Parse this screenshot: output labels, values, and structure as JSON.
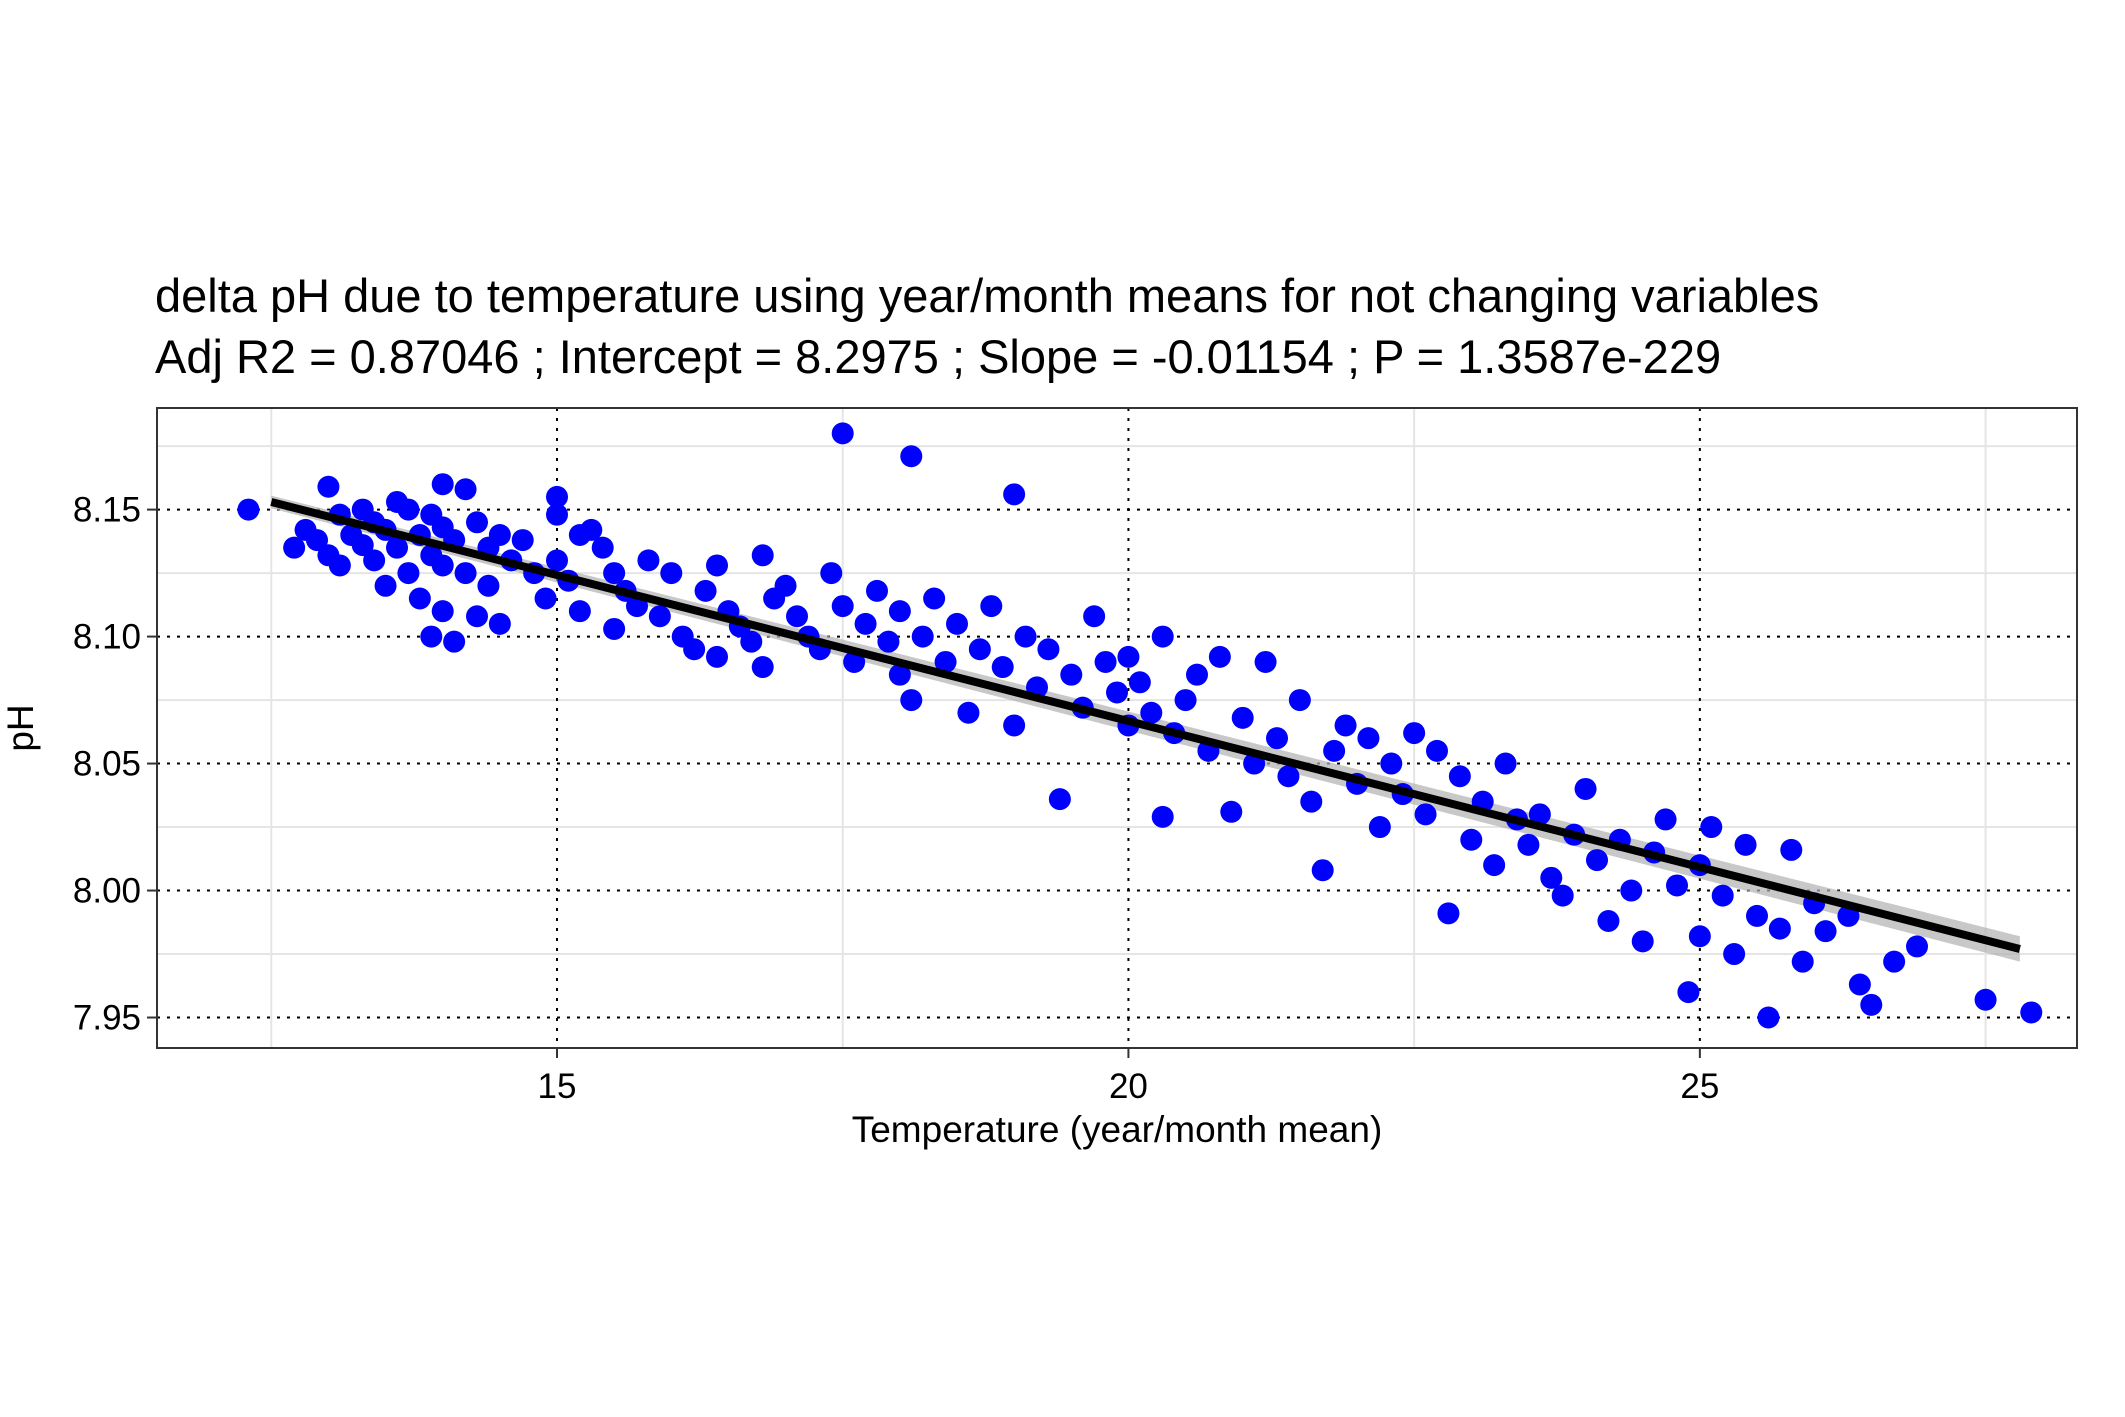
{
  "chart_data": {
    "type": "scatter",
    "title": "delta pH due to temperature using year/month means for not changing variables",
    "subtitle": "Adj R2 =  0.87046 ; Intercept = 8.2975 ; Slope = -0.01154 ; P = 1.3587e-229",
    "xlabel": "Temperature (year/month mean)",
    "ylabel": "pH",
    "xlim": [
      11.5,
      28.3
    ],
    "ylim": [
      7.938,
      8.19
    ],
    "x_ticks": [
      15,
      20,
      25
    ],
    "x_tick_labels": [
      "15",
      "20",
      "25"
    ],
    "y_ticks": [
      7.95,
      8.0,
      8.05,
      8.1,
      8.15
    ],
    "y_tick_labels": [
      "7.95",
      "8.00",
      "8.05",
      "8.10",
      "8.15"
    ],
    "grid": true,
    "legend": "none",
    "point_color": "#0000ff",
    "fit_line": {
      "x_start": 12.5,
      "x_end": 27.8,
      "y_start": 8.153,
      "y_end": 7.977,
      "color": "#000000",
      "ci_color": "#b0b0b0"
    },
    "points": [
      [
        12.3,
        8.15
      ],
      [
        12.7,
        8.135
      ],
      [
        12.8,
        8.142
      ],
      [
        12.9,
        8.138
      ],
      [
        13.0,
        8.159
      ],
      [
        13.0,
        8.132
      ],
      [
        13.1,
        8.148
      ],
      [
        13.1,
        8.128
      ],
      [
        13.2,
        8.14
      ],
      [
        13.3,
        8.15
      ],
      [
        13.3,
        8.136
      ],
      [
        13.4,
        8.145
      ],
      [
        13.4,
        8.13
      ],
      [
        13.5,
        8.12
      ],
      [
        13.5,
        8.142
      ],
      [
        13.6,
        8.153
      ],
      [
        13.6,
        8.135
      ],
      [
        13.7,
        8.15
      ],
      [
        13.7,
        8.125
      ],
      [
        13.8,
        8.14
      ],
      [
        13.8,
        8.115
      ],
      [
        13.9,
        8.148
      ],
      [
        13.9,
        8.132
      ],
      [
        13.9,
        8.1
      ],
      [
        14.0,
        8.16
      ],
      [
        14.0,
        8.143
      ],
      [
        14.0,
        8.128
      ],
      [
        14.0,
        8.11
      ],
      [
        14.1,
        8.138
      ],
      [
        14.1,
        8.098
      ],
      [
        14.2,
        8.158
      ],
      [
        14.2,
        8.125
      ],
      [
        14.3,
        8.145
      ],
      [
        14.3,
        8.108
      ],
      [
        14.4,
        8.135
      ],
      [
        14.4,
        8.12
      ],
      [
        14.5,
        8.14
      ],
      [
        14.5,
        8.105
      ],
      [
        14.6,
        8.13
      ],
      [
        14.7,
        8.138
      ],
      [
        14.8,
        8.125
      ],
      [
        14.9,
        8.115
      ],
      [
        15.0,
        8.155
      ],
      [
        15.0,
        8.148
      ],
      [
        15.0,
        8.13
      ],
      [
        15.1,
        8.122
      ],
      [
        15.2,
        8.14
      ],
      [
        15.2,
        8.11
      ],
      [
        15.3,
        8.142
      ],
      [
        15.4,
        8.135
      ],
      [
        15.5,
        8.125
      ],
      [
        15.5,
        8.103
      ],
      [
        15.6,
        8.118
      ],
      [
        15.7,
        8.112
      ],
      [
        15.8,
        8.13
      ],
      [
        15.9,
        8.108
      ],
      [
        16.0,
        8.125
      ],
      [
        16.1,
        8.1
      ],
      [
        16.2,
        8.095
      ],
      [
        16.3,
        8.118
      ],
      [
        16.4,
        8.128
      ],
      [
        16.4,
        8.092
      ],
      [
        16.5,
        8.11
      ],
      [
        16.6,
        8.104
      ],
      [
        16.7,
        8.098
      ],
      [
        16.8,
        8.132
      ],
      [
        16.8,
        8.088
      ],
      [
        16.9,
        8.115
      ],
      [
        17.0,
        8.12
      ],
      [
        17.1,
        8.108
      ],
      [
        17.2,
        8.1
      ],
      [
        17.3,
        8.095
      ],
      [
        17.4,
        8.125
      ],
      [
        17.5,
        8.18
      ],
      [
        17.5,
        8.112
      ],
      [
        17.6,
        8.09
      ],
      [
        17.7,
        8.105
      ],
      [
        17.8,
        8.118
      ],
      [
        17.9,
        8.098
      ],
      [
        18.0,
        8.085
      ],
      [
        18.0,
        8.11
      ],
      [
        18.1,
        8.171
      ],
      [
        18.1,
        8.075
      ],
      [
        18.2,
        8.1
      ],
      [
        18.3,
        8.115
      ],
      [
        18.4,
        8.09
      ],
      [
        18.5,
        8.105
      ],
      [
        18.6,
        8.07
      ],
      [
        18.7,
        8.095
      ],
      [
        18.8,
        8.112
      ],
      [
        18.9,
        8.088
      ],
      [
        19.0,
        8.156
      ],
      [
        19.0,
        8.065
      ],
      [
        19.1,
        8.1
      ],
      [
        19.2,
        8.08
      ],
      [
        19.3,
        8.095
      ],
      [
        19.4,
        8.036
      ],
      [
        19.5,
        8.085
      ],
      [
        19.6,
        8.072
      ],
      [
        19.7,
        8.108
      ],
      [
        19.8,
        8.09
      ],
      [
        19.9,
        8.078
      ],
      [
        20.0,
        8.092
      ],
      [
        20.0,
        8.065
      ],
      [
        20.1,
        8.082
      ],
      [
        20.2,
        8.07
      ],
      [
        20.3,
        8.1
      ],
      [
        20.3,
        8.029
      ],
      [
        20.4,
        8.062
      ],
      [
        20.5,
        8.075
      ],
      [
        20.6,
        8.085
      ],
      [
        20.7,
        8.055
      ],
      [
        20.8,
        8.092
      ],
      [
        20.9,
        8.031
      ],
      [
        21.0,
        8.068
      ],
      [
        21.1,
        8.05
      ],
      [
        21.2,
        8.09
      ],
      [
        21.3,
        8.06
      ],
      [
        21.4,
        8.045
      ],
      [
        21.5,
        8.075
      ],
      [
        21.6,
        8.035
      ],
      [
        21.7,
        8.008
      ],
      [
        21.8,
        8.055
      ],
      [
        21.9,
        8.065
      ],
      [
        22.0,
        8.042
      ],
      [
        22.1,
        8.06
      ],
      [
        22.2,
        8.025
      ],
      [
        22.3,
        8.05
      ],
      [
        22.4,
        8.038
      ],
      [
        22.5,
        8.062
      ],
      [
        22.6,
        8.03
      ],
      [
        22.7,
        8.055
      ],
      [
        22.8,
        7.991
      ],
      [
        22.9,
        8.045
      ],
      [
        23.0,
        8.02
      ],
      [
        23.1,
        8.035
      ],
      [
        23.2,
        8.01
      ],
      [
        23.3,
        8.05
      ],
      [
        23.4,
        8.028
      ],
      [
        23.5,
        8.018
      ],
      [
        23.6,
        8.03
      ],
      [
        23.7,
        8.005
      ],
      [
        23.8,
        7.998
      ],
      [
        23.9,
        8.022
      ],
      [
        24.0,
        8.04
      ],
      [
        24.1,
        8.012
      ],
      [
        24.2,
        7.988
      ],
      [
        24.3,
        8.02
      ],
      [
        24.4,
        8.0
      ],
      [
        24.5,
        7.98
      ],
      [
        24.6,
        8.015
      ],
      [
        24.7,
        8.028
      ],
      [
        24.8,
        8.002
      ],
      [
        24.9,
        7.96
      ],
      [
        25.0,
        8.01
      ],
      [
        25.0,
        7.982
      ],
      [
        25.1,
        8.025
      ],
      [
        25.2,
        7.998
      ],
      [
        25.3,
        7.975
      ],
      [
        25.4,
        8.018
      ],
      [
        25.5,
        7.99
      ],
      [
        25.6,
        7.95
      ],
      [
        25.7,
        7.985
      ],
      [
        25.8,
        8.016
      ],
      [
        25.9,
        7.972
      ],
      [
        26.0,
        7.995
      ],
      [
        26.1,
        7.984
      ],
      [
        26.3,
        7.99
      ],
      [
        26.4,
        7.963
      ],
      [
        26.5,
        7.955
      ],
      [
        26.7,
        7.972
      ],
      [
        26.9,
        7.978
      ],
      [
        27.5,
        7.957
      ],
      [
        27.9,
        7.952
      ]
    ]
  }
}
